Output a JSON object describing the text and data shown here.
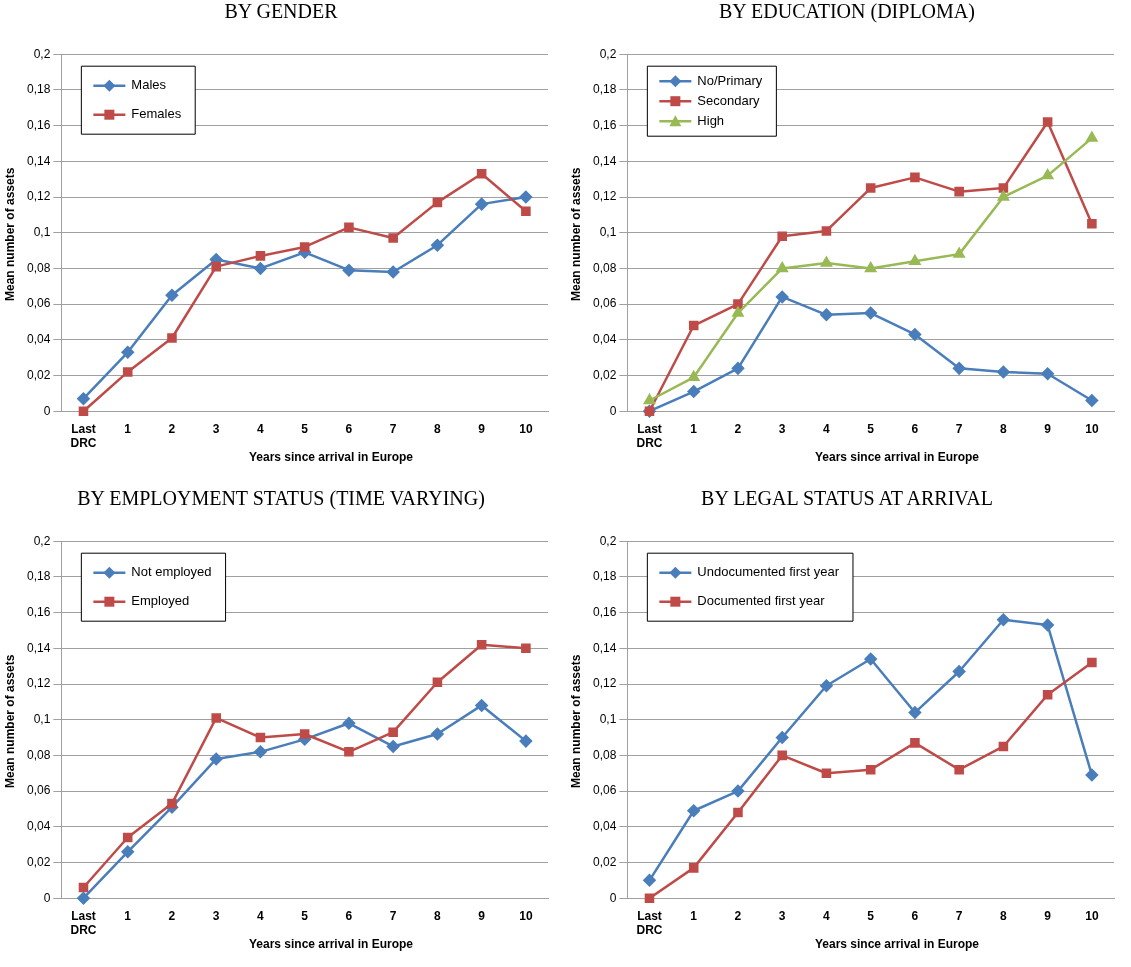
{
  "chart_data": [
    {
      "type": "line",
      "title": "BY GENDER",
      "xlabel": "Years since arrival in Europe",
      "ylabel": "Mean number of assets",
      "categories": [
        "Last DRC",
        "1",
        "2",
        "3",
        "4",
        "5",
        "6",
        "7",
        "8",
        "9",
        "10"
      ],
      "ylim": [
        0,
        0.2
      ],
      "yticks": [
        {
          "value": 0,
          "label": "0"
        },
        {
          "value": 0.02,
          "label": "0,02"
        },
        {
          "value": 0.04,
          "label": "0,04"
        },
        {
          "value": 0.06,
          "label": "0,06"
        },
        {
          "value": 0.08,
          "label": "0,08"
        },
        {
          "value": 0.1,
          "label": "0,1"
        },
        {
          "value": 0.12,
          "label": "0,12"
        },
        {
          "value": 0.14,
          "label": "0,14"
        },
        {
          "value": 0.16,
          "label": "0,16"
        },
        {
          "value": 0.18,
          "label": "0,18"
        },
        {
          "value": 0.2,
          "label": "0,2"
        }
      ],
      "grid": "y",
      "legend": "top left",
      "series": [
        {
          "name": "Males",
          "color": "#4a7ebb",
          "marker": "diamond",
          "values": [
            0.007,
            0.033,
            0.065,
            0.085,
            0.08,
            0.089,
            0.079,
            0.078,
            0.093,
            0.116,
            0.12
          ]
        },
        {
          "name": "Females",
          "color": "#be4b48",
          "marker": "square",
          "values": [
            0,
            0.022,
            0.041,
            0.081,
            0.087,
            0.092,
            0.103,
            0.097,
            0.117,
            0.133,
            0.112
          ]
        }
      ]
    },
    {
      "type": "line",
      "title": "BY EDUCATION (DIPLOMA)",
      "xlabel": "Years since arrival in Europe",
      "ylabel": "Mean number of assets",
      "categories": [
        "Last DRC",
        "1",
        "2",
        "3",
        "4",
        "5",
        "6",
        "7",
        "8",
        "9",
        "10"
      ],
      "ylim": [
        0,
        0.2
      ],
      "yticks": [
        {
          "value": 0,
          "label": "0"
        },
        {
          "value": 0.02,
          "label": "0,02"
        },
        {
          "value": 0.04,
          "label": "0,04"
        },
        {
          "value": 0.06,
          "label": "0,06"
        },
        {
          "value": 0.08,
          "label": "0,08"
        },
        {
          "value": 0.1,
          "label": "0,1"
        },
        {
          "value": 0.12,
          "label": "0,12"
        },
        {
          "value": 0.14,
          "label": "0,14"
        },
        {
          "value": 0.16,
          "label": "0,16"
        },
        {
          "value": 0.18,
          "label": "0,18"
        },
        {
          "value": 0.2,
          "label": "0,2"
        }
      ],
      "grid": "y",
      "legend": "top left",
      "series": [
        {
          "name": "No/Primary",
          "color": "#4a7ebb",
          "marker": "diamond",
          "values": [
            0,
            0.011,
            0.024,
            0.064,
            0.054,
            0.055,
            0.043,
            0.024,
            0.022,
            0.021,
            0.006
          ]
        },
        {
          "name": "Secondary",
          "color": "#be4b48",
          "marker": "square",
          "values": [
            0,
            0.048,
            0.06,
            0.098,
            0.101,
            0.125,
            0.131,
            0.123,
            0.125,
            0.162,
            0.105
          ]
        },
        {
          "name": "High",
          "color": "#98b954",
          "marker": "triangle",
          "values": [
            0.006,
            0.019,
            0.055,
            0.08,
            0.083,
            0.08,
            0.084,
            0.088,
            0.12,
            0.132,
            0.153
          ]
        }
      ]
    },
    {
      "type": "line",
      "title": "BY EMPLOYMENT STATUS (TIME VARYING)",
      "xlabel": "Years since arrival in Europe",
      "ylabel": "Mean number of assets",
      "categories": [
        "Last DRC",
        "1",
        "2",
        "3",
        "4",
        "5",
        "6",
        "7",
        "8",
        "9",
        "10"
      ],
      "ylim": [
        0,
        0.2
      ],
      "yticks": [
        {
          "value": 0,
          "label": "0"
        },
        {
          "value": 0.02,
          "label": "0,02"
        },
        {
          "value": 0.04,
          "label": "0,04"
        },
        {
          "value": 0.06,
          "label": "0,06"
        },
        {
          "value": 0.08,
          "label": "0,08"
        },
        {
          "value": 0.1,
          "label": "0,1"
        },
        {
          "value": 0.12,
          "label": "0,12"
        },
        {
          "value": 0.14,
          "label": "0,14"
        },
        {
          "value": 0.16,
          "label": "0,16"
        },
        {
          "value": 0.18,
          "label": "0,18"
        },
        {
          "value": 0.2,
          "label": "0,2"
        }
      ],
      "grid": "y",
      "legend": "top left",
      "series": [
        {
          "name": "Not employed",
          "color": "#4a7ebb",
          "marker": "diamond",
          "values": [
            0,
            0.026,
            0.051,
            0.078,
            0.082,
            0.089,
            0.098,
            0.085,
            0.092,
            0.108,
            0.088
          ]
        },
        {
          "name": "Employed",
          "color": "#be4b48",
          "marker": "square",
          "values": [
            0.006,
            0.034,
            0.053,
            0.101,
            0.09,
            0.092,
            0.082,
            0.093,
            0.121,
            0.142,
            0.14
          ]
        }
      ]
    },
    {
      "type": "line",
      "title": "BY LEGAL STATUS AT ARRIVAL",
      "xlabel": "Years since arrival in Europe",
      "ylabel": "Mean number of assets",
      "categories": [
        "Last DRC",
        "1",
        "2",
        "3",
        "4",
        "5",
        "6",
        "7",
        "8",
        "9",
        "10"
      ],
      "ylim": [
        0,
        0.2
      ],
      "yticks": [
        {
          "value": 0,
          "label": "0"
        },
        {
          "value": 0.02,
          "label": "0,02"
        },
        {
          "value": 0.04,
          "label": "0,04"
        },
        {
          "value": 0.06,
          "label": "0,06"
        },
        {
          "value": 0.08,
          "label": "0,08"
        },
        {
          "value": 0.1,
          "label": "0,1"
        },
        {
          "value": 0.12,
          "label": "0,12"
        },
        {
          "value": 0.14,
          "label": "0,14"
        },
        {
          "value": 0.16,
          "label": "0,16"
        },
        {
          "value": 0.18,
          "label": "0,18"
        },
        {
          "value": 0.2,
          "label": "0,2"
        }
      ],
      "grid": "y",
      "legend": "top left",
      "series": [
        {
          "name": "Undocumented first year",
          "color": "#4a7ebb",
          "marker": "diamond",
          "values": [
            0.01,
            0.049,
            0.06,
            0.09,
            0.119,
            0.134,
            0.104,
            0.127,
            0.156,
            0.153,
            0.069
          ]
        },
        {
          "name": "Documented first year",
          "color": "#be4b48",
          "marker": "square",
          "values": [
            0,
            0.017,
            0.048,
            0.08,
            0.07,
            0.072,
            0.087,
            0.072,
            0.085,
            0.114,
            0.132
          ]
        }
      ]
    }
  ]
}
